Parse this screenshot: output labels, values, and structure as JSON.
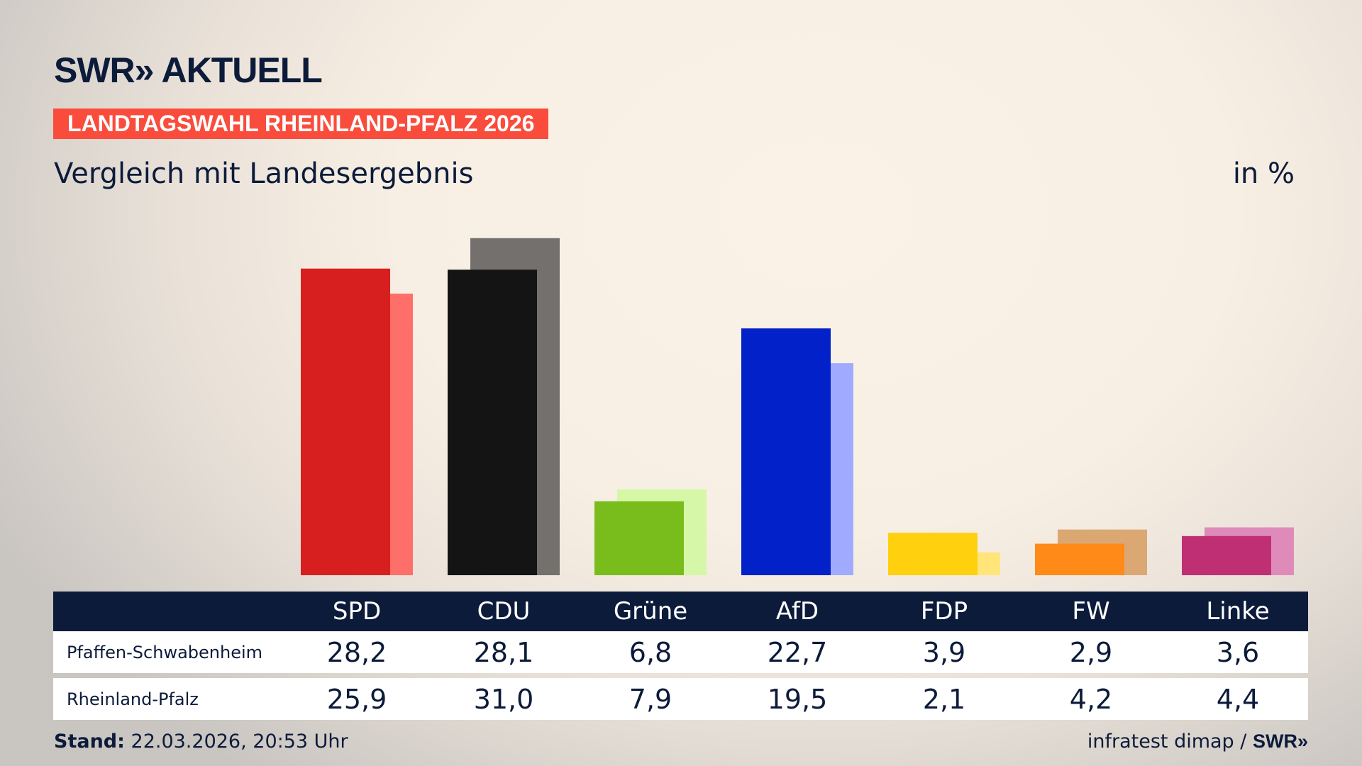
{
  "logo": "SWR» AKTUELL",
  "banner": "LANDTAGSWAHL RHEINLAND-PFALZ 2026",
  "subtitle": "Vergleich mit Landesergebnis",
  "unit": "in %",
  "chart_data": {
    "type": "bar",
    "categories": [
      "SPD",
      "CDU",
      "Grüne",
      "AfD",
      "FDP",
      "FW",
      "Linke"
    ],
    "series": [
      {
        "name": "Pfaffen-Schwabenheim",
        "values": [
          28.2,
          28.1,
          6.8,
          22.7,
          3.9,
          2.9,
          3.6
        ],
        "colors": [
          "#d81f1f",
          "#141414",
          "#79bd1c",
          "#0221c8",
          "#ffd00d",
          "#ff8a17",
          "#bf2f74"
        ]
      },
      {
        "name": "Rheinland-Pfalz",
        "values": [
          25.9,
          31.0,
          7.9,
          19.5,
          2.1,
          4.2,
          4.4
        ],
        "colors": [
          "#ff6f6a",
          "#73706d",
          "#d7f7a8",
          "#a0abff",
          "#ffe57a",
          "#dba874",
          "#de8bb9"
        ]
      }
    ],
    "ylim": [
      0,
      31
    ]
  },
  "table": {
    "headers": [
      "SPD",
      "CDU",
      "Grüne",
      "AfD",
      "FDP",
      "FW",
      "Linke"
    ],
    "rows": [
      {
        "label": "Pfaffen-Schwabenheim",
        "values": [
          "28,2",
          "28,1",
          "6,8",
          "22,7",
          "3,9",
          "2,9",
          "3,6"
        ]
      },
      {
        "label": "Rheinland-Pfalz",
        "values": [
          "25,9",
          "31,0",
          "7,9",
          "19,5",
          "2,1",
          "4,2",
          "4,4"
        ]
      }
    ]
  },
  "footer": {
    "stand_label": "Stand:",
    "stand_value": "22.03.2026, 20:53 Uhr",
    "source": "infratest dimap /",
    "source_logo": "SWR»"
  }
}
